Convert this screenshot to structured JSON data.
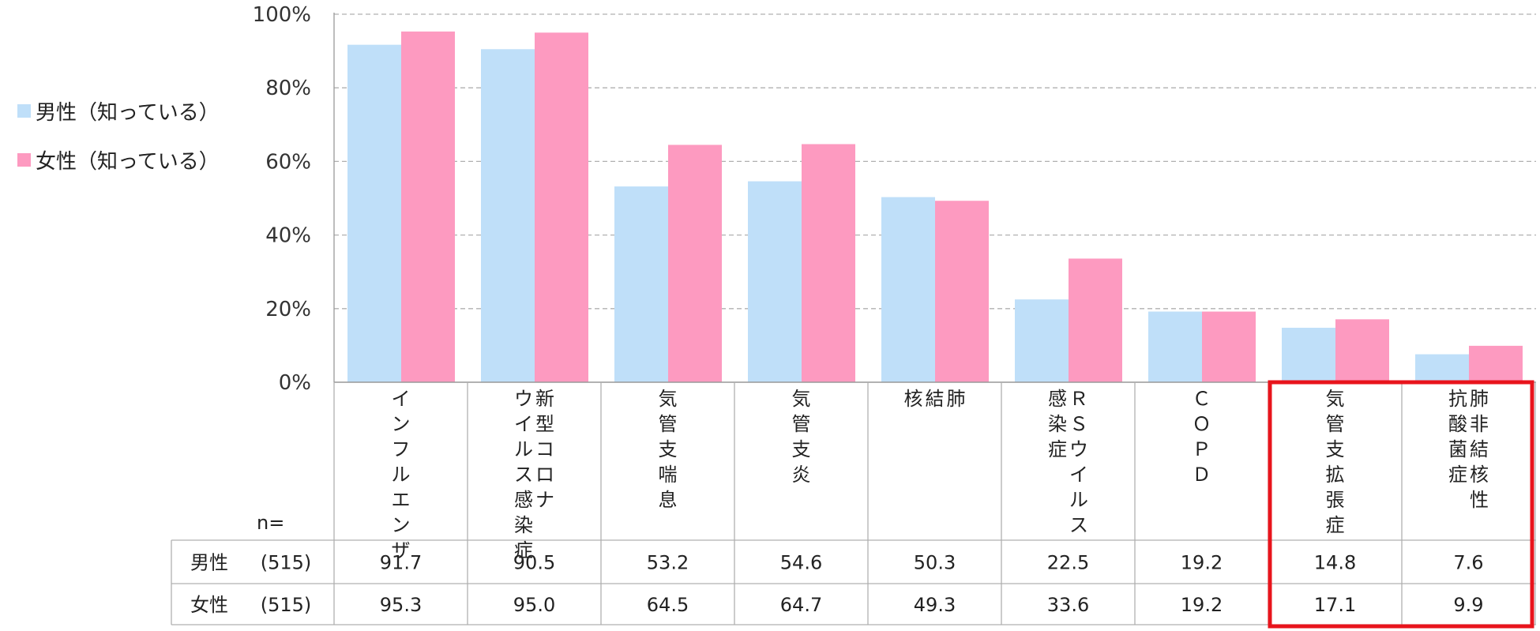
{
  "chart_data": {
    "type": "bar",
    "ylim": [
      0,
      100
    ],
    "y_ticks": [
      "0%",
      "20%",
      "40%",
      "60%",
      "80%",
      "100%"
    ],
    "grid": true,
    "legend_position": "left",
    "categories": [
      [
        "インフルエンザ"
      ],
      [
        "新型コロナ",
        "ウイルス感染症"
      ],
      [
        "気管支喘息"
      ],
      [
        "気管支炎"
      ],
      [
        "肺",
        "結",
        "核"
      ],
      [
        "ＲＳウイルス",
        "感染症"
      ],
      [
        "ＣＯＰＤ"
      ],
      [
        "気管支拡張症"
      ],
      [
        "肺非結核性",
        "抗酸菌症"
      ]
    ],
    "series": [
      {
        "name": "男性（知っている）",
        "color": "#bfdff9",
        "values": [
          91.7,
          90.5,
          53.2,
          54.6,
          50.3,
          22.5,
          19.2,
          14.8,
          7.6
        ]
      },
      {
        "name": "女性（知っている）",
        "color": "#fd9ac0",
        "values": [
          95.3,
          95.0,
          64.5,
          64.7,
          49.3,
          33.6,
          19.2,
          17.1,
          9.9
        ]
      }
    ],
    "table": {
      "n_label": "n=",
      "rows": [
        {
          "label": "男性",
          "n": "(515)",
          "values": [
            "91.7",
            "90.5",
            "53.2",
            "54.6",
            "50.3",
            "22.5",
            "19.2",
            "14.8",
            "7.6"
          ]
        },
        {
          "label": "女性",
          "n": "(515)",
          "values": [
            "95.3",
            "95.0",
            "64.5",
            "64.7",
            "49.3",
            "33.6",
            "19.2",
            "17.1",
            "9.9"
          ]
        }
      ]
    },
    "highlight": {
      "categories": [
        7,
        8
      ],
      "color": "#e8141c"
    }
  }
}
